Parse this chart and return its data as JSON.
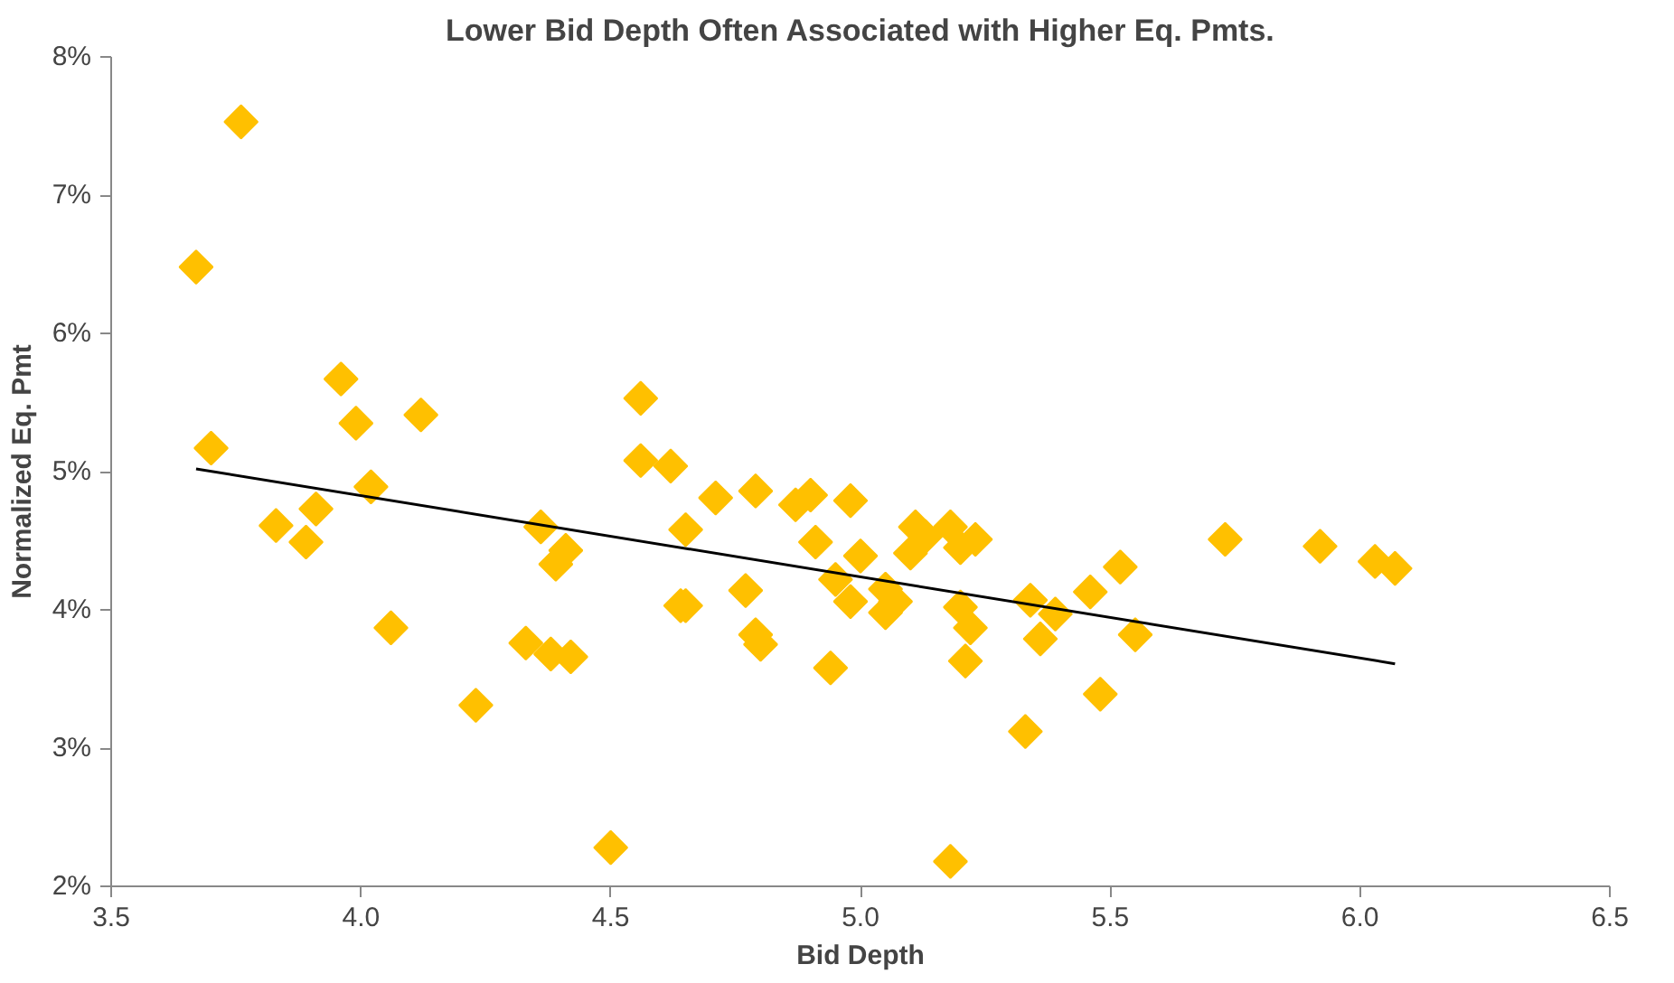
{
  "chart_data": {
    "type": "scatter",
    "title": "Lower Bid Depth Often Associated with Higher Eq. Pmts.",
    "xlabel": "Bid Depth",
    "ylabel": "Normalized Eq. Pmt",
    "marker": "diamond",
    "grid": false,
    "xlim": [
      3.5,
      6.5
    ],
    "xticks": [
      {
        "value": 3.5,
        "label": "3.5"
      },
      {
        "value": 4.0,
        "label": "4.0"
      },
      {
        "value": 4.5,
        "label": "4.5"
      },
      {
        "value": 5.0,
        "label": "5.0"
      },
      {
        "value": 5.5,
        "label": "5.5"
      },
      {
        "value": 6.0,
        "label": "6.0"
      },
      {
        "value": 6.5,
        "label": "6.5"
      }
    ],
    "ylim": [
      2,
      8
    ],
    "yticks": [
      {
        "value": 2,
        "label": "2%"
      },
      {
        "value": 3,
        "label": "3%"
      },
      {
        "value": 4,
        "label": "4%"
      },
      {
        "value": 5,
        "label": "5%"
      },
      {
        "value": 6,
        "label": "6%"
      },
      {
        "value": 7,
        "label": "7%"
      },
      {
        "value": 8,
        "label": "8%"
      }
    ],
    "series": [
      {
        "color": "#ffc000",
        "x": [
          3.67,
          3.76,
          3.7,
          3.83,
          3.89,
          3.91,
          3.96,
          3.99,
          4.02,
          4.06,
          4.12,
          4.23,
          4.33,
          4.36,
          4.38,
          4.39,
          4.41,
          4.42,
          4.5,
          4.56,
          4.56,
          4.62,
          4.64,
          4.65,
          4.65,
          4.71,
          4.77,
          4.79,
          4.79,
          4.8,
          4.87,
          4.9,
          4.91,
          4.94,
          4.95,
          4.98,
          4.98,
          5.0,
          5.05,
          5.05,
          5.07,
          5.1,
          5.11,
          5.13,
          5.18,
          5.18,
          5.2,
          5.2,
          5.21,
          5.22,
          5.23,
          5.33,
          5.34,
          5.36,
          5.39,
          5.46,
          5.48,
          5.52,
          5.55,
          5.73,
          5.92,
          6.03,
          6.07
        ],
        "values": [
          6.48,
          7.53,
          5.17,
          4.61,
          4.49,
          4.73,
          5.67,
          5.35,
          4.89,
          3.87,
          5.41,
          3.31,
          3.76,
          4.6,
          3.68,
          4.33,
          4.43,
          3.66,
          2.28,
          5.53,
          5.08,
          5.04,
          4.03,
          4.03,
          4.58,
          4.81,
          4.14,
          4.86,
          3.82,
          3.75,
          4.76,
          4.83,
          4.49,
          3.58,
          4.22,
          4.79,
          4.06,
          4.39,
          4.15,
          3.98,
          4.06,
          4.41,
          4.6,
          4.53,
          4.6,
          2.18,
          4.45,
          4.02,
          3.63,
          3.87,
          4.51,
          3.12,
          4.07,
          3.79,
          3.97,
          4.13,
          3.39,
          4.31,
          3.82,
          4.51,
          4.46,
          4.35,
          4.3
        ]
      },
      {
        "type": "line",
        "marker": "none",
        "color": "#000000",
        "x": [
          3.67,
          6.07
        ],
        "values": [
          5.02,
          3.61
        ]
      }
    ]
  }
}
